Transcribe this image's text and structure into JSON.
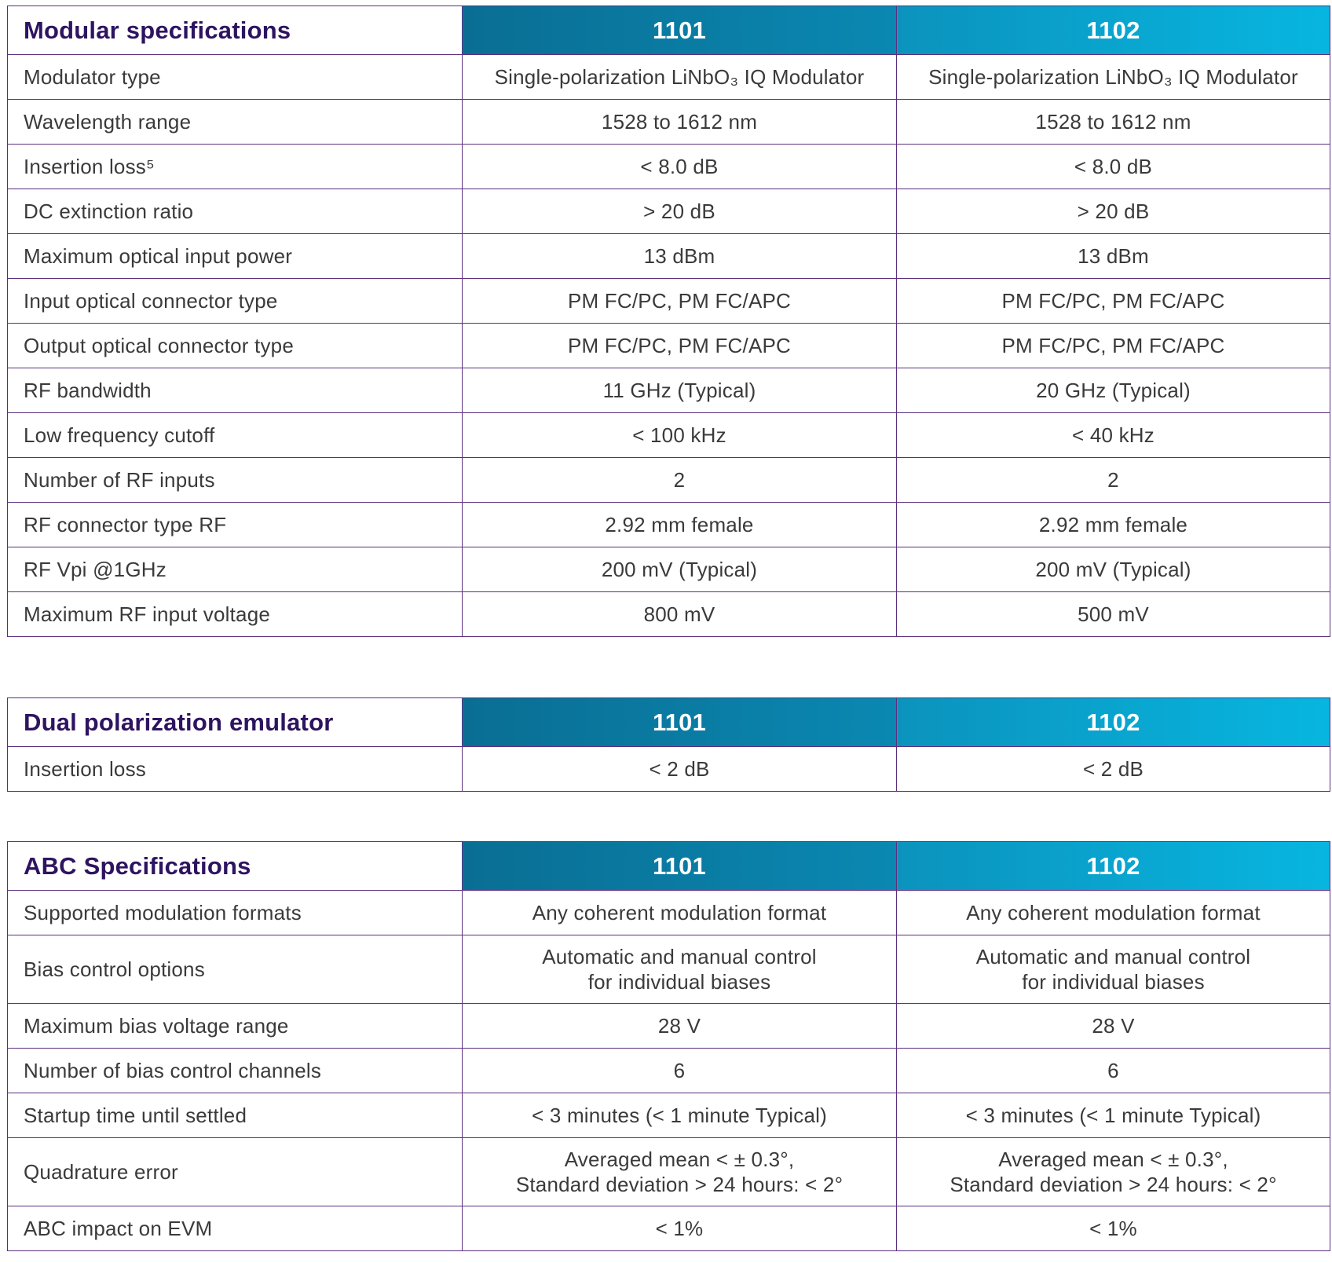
{
  "tables": [
    {
      "title": "Modular specifications",
      "col_a": "1101",
      "col_b": "1102",
      "rows": [
        {
          "label": "Modulator type",
          "a": "Single-polarization LiNbO₃ IQ Modulator",
          "b": "Single-polarization LiNbO₃ IQ Modulator"
        },
        {
          "label": "Wavelength range",
          "a": "1528 to 1612 nm",
          "b": "1528 to 1612 nm"
        },
        {
          "label": "Insertion loss⁵",
          "a": "< 8.0 dB",
          "b": "< 8.0 dB"
        },
        {
          "label": "DC extinction ratio",
          "a": "> 20 dB",
          "b": "> 20 dB"
        },
        {
          "label": "Maximum optical input power",
          "a": "13 dBm",
          "b": "13 dBm"
        },
        {
          "label": "Input optical connector type",
          "a": "PM FC/PC, PM FC/APC",
          "b": "PM FC/PC, PM FC/APC"
        },
        {
          "label": "Output optical connector type",
          "a": "PM FC/PC, PM FC/APC",
          "b": "PM FC/PC, PM FC/APC"
        },
        {
          "label": "RF bandwidth",
          "a": "11 GHz (Typical)",
          "b": "20 GHz (Typical)"
        },
        {
          "label": "Low frequency cutoff",
          "a": "< 100 kHz",
          "b": "< 40 kHz"
        },
        {
          "label": "Number of RF inputs",
          "a": "2",
          "b": "2"
        },
        {
          "label": "RF connector type RF",
          "a": "2.92 mm female",
          "b": "2.92 mm female"
        },
        {
          "label": "RF Vpi @1GHz",
          "a": "200 mV (Typical)",
          "b": "200 mV (Typical)"
        },
        {
          "label": "Maximum RF input voltage",
          "a": "800 mV",
          "b": "500 mV"
        }
      ]
    },
    {
      "title": "Dual polarization emulator",
      "col_a": "1101",
      "col_b": "1102",
      "rows": [
        {
          "label": "Insertion loss",
          "a": "< 2 dB",
          "b": "< 2 dB"
        }
      ]
    },
    {
      "title": "ABC Specifications",
      "col_a": "1101",
      "col_b": "1102",
      "rows": [
        {
          "label": "Supported modulation formats",
          "a": "Any coherent modulation format",
          "b": "Any coherent modulation format"
        },
        {
          "label": "Bias control options",
          "a_line1": "Automatic and manual control",
          "a_line2": "for individual biases",
          "b_line1": "Automatic and manual control",
          "b_line2": "for individual biases"
        },
        {
          "label": "Maximum bias voltage range",
          "a": "28 V",
          "b": "28 V"
        },
        {
          "label": "Number of bias control channels",
          "a": "6",
          "b": "6"
        },
        {
          "label": "Startup time until settled",
          "a": "< 3 minutes (< 1 minute Typical)",
          "b": "< 3 minutes (< 1 minute Typical)"
        },
        {
          "label": "Quadrature error",
          "a_line1": "Averaged mean < ± 0.3°,",
          "a_line2": "Standard deviation > 24 hours: < 2°",
          "b_line1": "Averaged mean < ± 0.3°,",
          "b_line2": "Standard deviation > 24 hours: < 2°"
        },
        {
          "label": "ABC impact on EVM",
          "a": "< 1%",
          "b": "< 1%"
        }
      ]
    }
  ]
}
